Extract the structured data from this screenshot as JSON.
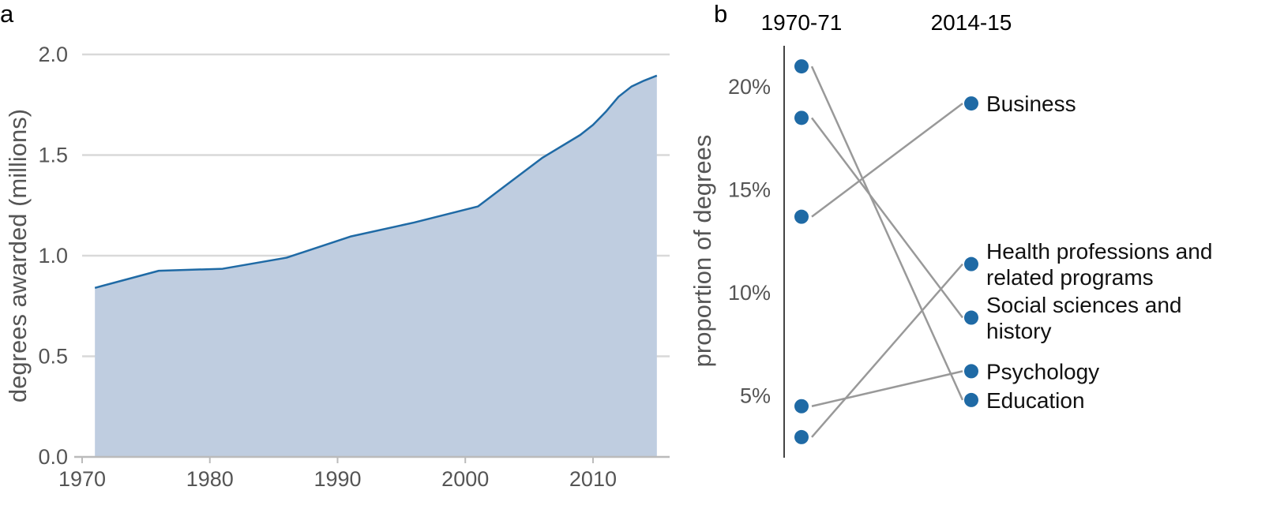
{
  "chart_data": [
    {
      "type": "area",
      "panel_label": "a",
      "ylabel": "degrees awarded (millions)",
      "xlabel": "",
      "xlim": [
        1970,
        2016
      ],
      "ylim": [
        0,
        2.0
      ],
      "xticks": [
        1970,
        1980,
        1990,
        2000,
        2010
      ],
      "xtick_labels": [
        "1970",
        "1980",
        "1990",
        "2000",
        "2010"
      ],
      "yticks": [
        0,
        0.5,
        1.0,
        1.5,
        2.0
      ],
      "ytick_labels": [
        "0.0",
        "0.5",
        "1.0",
        "1.5",
        "2.0"
      ],
      "grid": "horizontal",
      "line_color": "#1f6aa5",
      "fill_color": "#bfcde0",
      "x": [
        1971,
        1976,
        1981,
        1986,
        1991,
        1996,
        2001,
        2006,
        2009,
        2010,
        2011,
        2012,
        2013,
        2014,
        2015
      ],
      "y": [
        0.84,
        0.925,
        0.935,
        0.99,
        1.095,
        1.165,
        1.245,
        1.485,
        1.6,
        1.65,
        1.715,
        1.79,
        1.84,
        1.87,
        1.895
      ]
    },
    {
      "type": "slope",
      "panel_label": "b",
      "ylabel": "proportion of degrees",
      "column_headers": [
        "1970-71",
        "2014-15"
      ],
      "ylim": [
        2,
        22
      ],
      "yticks": [
        5,
        10,
        15,
        20
      ],
      "ytick_labels": [
        "5%",
        "10%",
        "15%",
        "20%"
      ],
      "point_color": "#1f6aa5",
      "line_color": "#999999",
      "series": [
        {
          "label_lines": [
            "Business"
          ],
          "start": 13.7,
          "end": 19.2
        },
        {
          "label_lines": [
            "Health professions and",
            "related programs"
          ],
          "start": 3.0,
          "end": 11.4
        },
        {
          "label_lines": [
            "Social sciences and",
            "history"
          ],
          "start": 18.5,
          "end": 8.8
        },
        {
          "label_lines": [
            "Psychology"
          ],
          "start": 4.5,
          "end": 6.2
        },
        {
          "label_lines": [
            "Education"
          ],
          "start": 21.0,
          "end": 4.8
        }
      ]
    }
  ]
}
